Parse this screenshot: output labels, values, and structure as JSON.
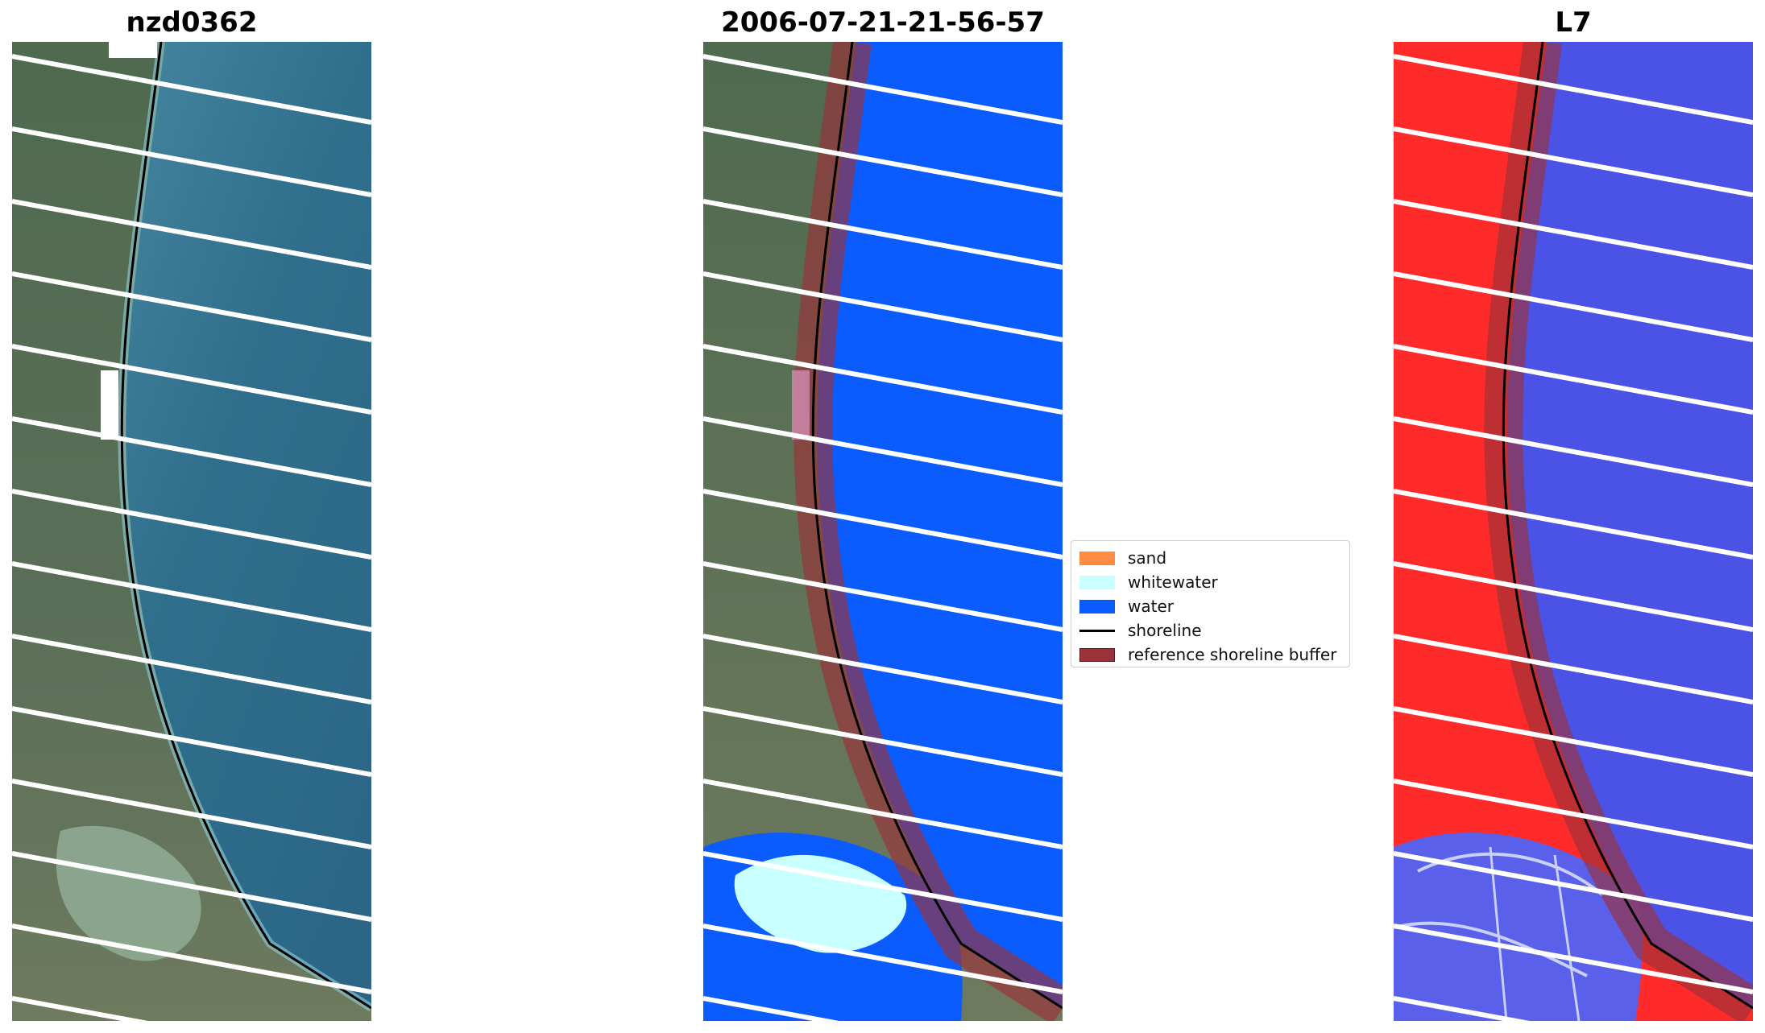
{
  "panels": [
    {
      "title": "nzd0362",
      "kind": "rgb"
    },
    {
      "title": "2006-07-21-21-56-57",
      "kind": "classified"
    },
    {
      "title": "L7",
      "kind": "index"
    }
  ],
  "legend": {
    "items": [
      {
        "label": "sand",
        "color": "#ff8c42",
        "type": "patch"
      },
      {
        "label": "whitewater",
        "color": "#c8ffff",
        "type": "patch"
      },
      {
        "label": "water",
        "color": "#0a5cff",
        "type": "patch"
      },
      {
        "label": "shoreline",
        "color": "#000000",
        "type": "line"
      },
      {
        "label": "reference shoreline buffer",
        "color": "#9b3139",
        "type": "patch"
      }
    ]
  }
}
